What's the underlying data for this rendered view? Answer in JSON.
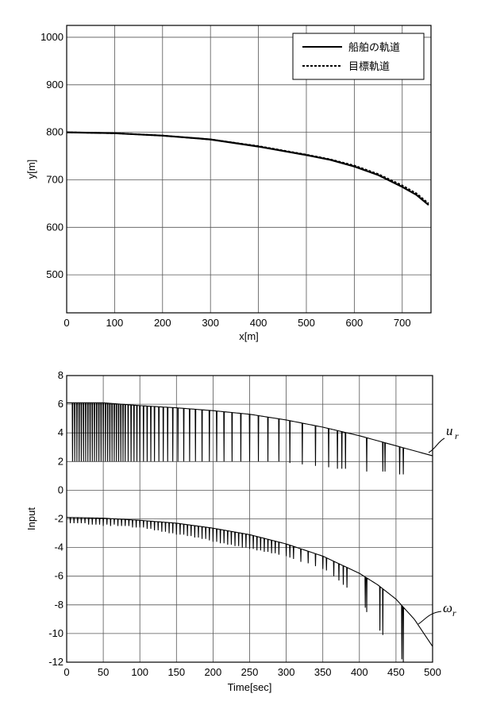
{
  "chart_data": [
    {
      "type": "line",
      "xlabel": "x[m]",
      "ylabel": "y[m]",
      "xlim": [
        0,
        760
      ],
      "ylim": [
        420,
        1025
      ],
      "xticks": [
        "0",
        "100",
        "200",
        "300",
        "400",
        "500",
        "600",
        "700"
      ],
      "yticks": [
        "500",
        "600",
        "700",
        "800",
        "900",
        "1000"
      ],
      "grid": true,
      "legend_position": "top-right",
      "series": [
        {
          "name": "船舶の軌道",
          "style": "solid",
          "x": [
            0,
            100,
            200,
            300,
            400,
            500,
            550,
            600,
            650,
            700,
            730,
            755
          ],
          "y": [
            800,
            798,
            793,
            785,
            770,
            752,
            742,
            728,
            710,
            685,
            668,
            647
          ]
        },
        {
          "name": "目標軌道",
          "style": "dashed",
          "x": [
            0,
            100,
            200,
            300,
            400,
            500,
            550,
            600,
            650,
            700,
            730,
            755
          ],
          "y": [
            800,
            798,
            793,
            785,
            771,
            753,
            743,
            730,
            712,
            688,
            671,
            650
          ]
        }
      ]
    },
    {
      "type": "line",
      "xlabel": "Time[sec]",
      "ylabel": "Input",
      "xlim": [
        0,
        500
      ],
      "ylim": [
        -12,
        8
      ],
      "xticks": [
        "0",
        "50",
        "100",
        "150",
        "200",
        "250",
        "300",
        "350",
        "400",
        "450",
        "500"
      ],
      "yticks": [
        "-12",
        "-10",
        "-8",
        "-6",
        "-4",
        "-2",
        "0",
        "2",
        "4",
        "6",
        "8"
      ],
      "grid": true,
      "annotations": {
        "u": {
          "base": "u",
          "sub": "r"
        },
        "w": {
          "base": "ω",
          "sub": "r"
        }
      },
      "series": [
        {
          "envelope_t": [
            0,
            50,
            100,
            150,
            200,
            250,
            300,
            350,
            400,
            450,
            500
          ],
          "envelope_v": [
            6.1,
            6.1,
            5.9,
            5.75,
            5.55,
            5.3,
            4.9,
            4.4,
            3.8,
            3.1,
            2.4
          ],
          "dip_t": [
            8,
            11,
            14,
            17,
            20,
            23,
            26,
            29,
            32,
            35,
            38,
            41,
            44,
            47,
            50,
            53,
            56,
            59,
            62,
            65,
            68,
            71,
            74,
            77,
            80,
            84,
            88,
            92,
            96,
            100,
            105,
            110,
            115,
            120,
            126,
            132,
            138,
            145,
            152,
            160,
            168,
            176,
            185,
            195,
            205,
            215,
            226,
            238,
            250,
            262,
            275,
            290,
            305,
            322,
            340,
            358,
            370,
            376,
            381,
            410,
            432,
            435,
            455,
            460
          ],
          "dip_v": [
            2,
            2,
            2,
            2,
            2,
            2,
            2,
            2,
            2,
            2,
            2,
            2,
            2,
            2,
            2,
            2,
            2,
            2,
            2,
            2,
            2,
            2,
            2,
            2,
            2,
            2,
            2,
            2,
            2,
            2,
            2,
            2,
            2,
            2,
            2,
            2,
            2,
            2,
            2,
            2,
            2,
            2,
            2,
            2,
            2,
            2,
            2,
            2,
            2,
            2,
            2,
            2,
            1.9,
            1.8,
            1.7,
            1.6,
            1.5,
            1.5,
            1.5,
            1.3,
            1.3,
            1.3,
            1.1,
            1.1
          ]
        },
        {
          "envelope_t": [
            0,
            50,
            100,
            150,
            200,
            250,
            300,
            350,
            400,
            425,
            450,
            475,
            500
          ],
          "envelope_v": [
            -1.9,
            -1.95,
            -2.1,
            -2.3,
            -2.65,
            -3.1,
            -3.75,
            -4.6,
            -5.8,
            -6.6,
            -7.6,
            -9.0,
            -10.9
          ],
          "dip_t": [
            5,
            10,
            15,
            20,
            25,
            30,
            35,
            40,
            45,
            50,
            55,
            60,
            65,
            70,
            75,
            80,
            85,
            90,
            95,
            100,
            105,
            110,
            115,
            120,
            125,
            130,
            135,
            140,
            145,
            150,
            155,
            160,
            165,
            170,
            175,
            180,
            185,
            190,
            195,
            200,
            205,
            210,
            215,
            220,
            225,
            230,
            235,
            240,
            245,
            250,
            255,
            260,
            265,
            270,
            275,
            280,
            285,
            290,
            300,
            305,
            310,
            320,
            330,
            340,
            350,
            355,
            365,
            372,
            378,
            383,
            408,
            410,
            428,
            432,
            458,
            460
          ],
          "dip_v": [
            -2.3,
            -2.3,
            -2.3,
            -2.3,
            -2.3,
            -2.4,
            -2.4,
            -2.4,
            -2.4,
            -2.5,
            -2.4,
            -2.5,
            -2.4,
            -2.5,
            -2.5,
            -2.5,
            -2.5,
            -2.6,
            -2.6,
            -2.6,
            -2.6,
            -2.7,
            -2.7,
            -2.8,
            -2.8,
            -2.9,
            -2.9,
            -3.0,
            -3.0,
            -3.1,
            -3.1,
            -3.1,
            -3.2,
            -3.2,
            -3.3,
            -3.3,
            -3.4,
            -3.4,
            -3.5,
            -3.6,
            -3.6,
            -3.7,
            -3.7,
            -3.8,
            -3.8,
            -3.9,
            -3.9,
            -4.0,
            -4.0,
            -4.1,
            -4.1,
            -4.2,
            -4.2,
            -4.3,
            -4.3,
            -4.4,
            -4.4,
            -4.5,
            -4.6,
            -4.7,
            -4.8,
            -5.0,
            -5.1,
            -5.3,
            -5.5,
            -5.6,
            -6.0,
            -6.3,
            -6.6,
            -6.8,
            -8.2,
            -8.5,
            -9.8,
            -10.1,
            -11.8,
            -12.0
          ]
        }
      ]
    }
  ]
}
